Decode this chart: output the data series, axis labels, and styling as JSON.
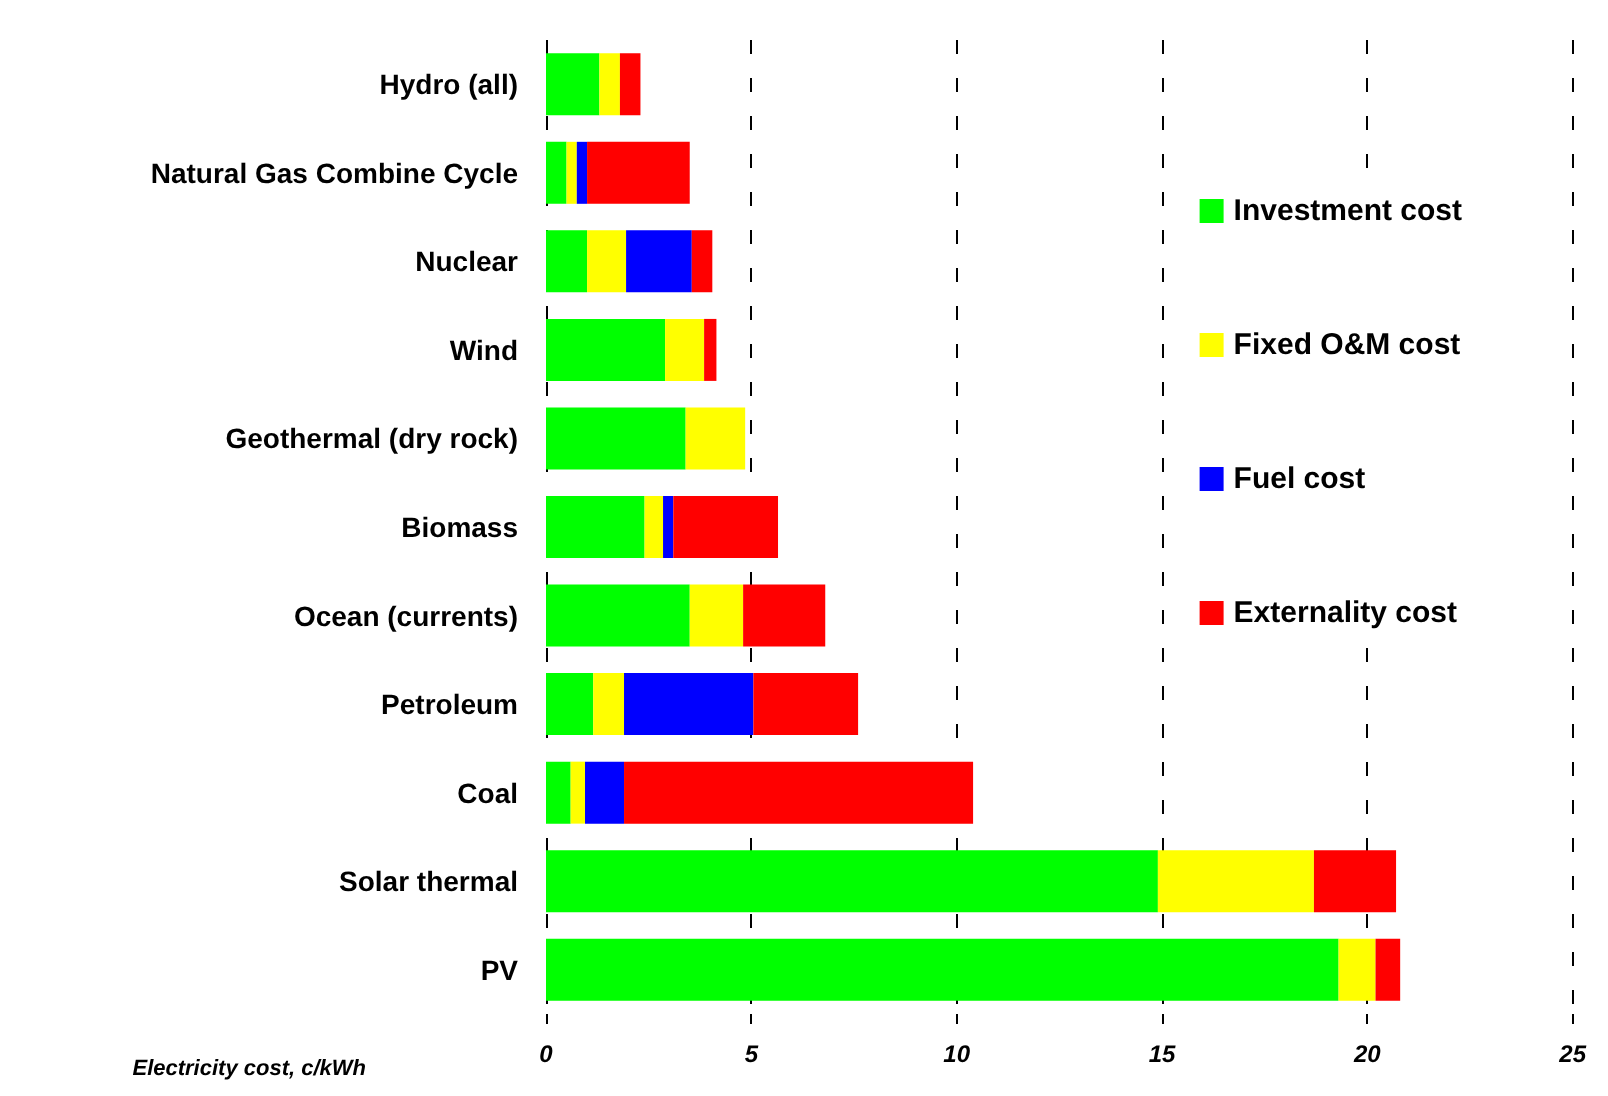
{
  "chart_data": {
    "type": "bar",
    "orientation": "horizontal",
    "stacked": true,
    "xlabel": "Electricity cost, c/kWh",
    "categories": [
      "Hydro (all)",
      "Natural Gas Combine Cycle",
      "Nuclear",
      "Wind",
      "Geothermal (dry rock)",
      "Biomass",
      "Ocean (currents)",
      "Petroleum",
      "Coal",
      "Solar thermal",
      "PV"
    ],
    "series": [
      {
        "name": "Investment cost",
        "color": "#00ff00",
        "values": [
          1.3,
          0.5,
          1.0,
          2.9,
          3.4,
          2.4,
          3.5,
          1.15,
          0.6,
          14.9,
          19.3
        ]
      },
      {
        "name": "Fixed O&M cost",
        "color": "#ffff00",
        "values": [
          0.5,
          0.25,
          0.95,
          0.95,
          1.45,
          0.45,
          1.3,
          0.75,
          0.35,
          3.8,
          0.9
        ]
      },
      {
        "name": "Fuel cost",
        "color": "#0000ff",
        "values": [
          null,
          0.25,
          1.6,
          null,
          null,
          0.25,
          null,
          3.15,
          0.95,
          null,
          null
        ]
      },
      {
        "name": "Externality cost",
        "color": "#ff0000",
        "values": [
          0.5,
          2.5,
          0.5,
          0.3,
          null,
          2.55,
          2.0,
          2.55,
          8.5,
          2.0,
          0.6
        ]
      }
    ],
    "xlim": [
      0,
      25
    ],
    "xticks": [
      0,
      5,
      10,
      15,
      20,
      25
    ],
    "grid": "x",
    "legend": "right"
  }
}
